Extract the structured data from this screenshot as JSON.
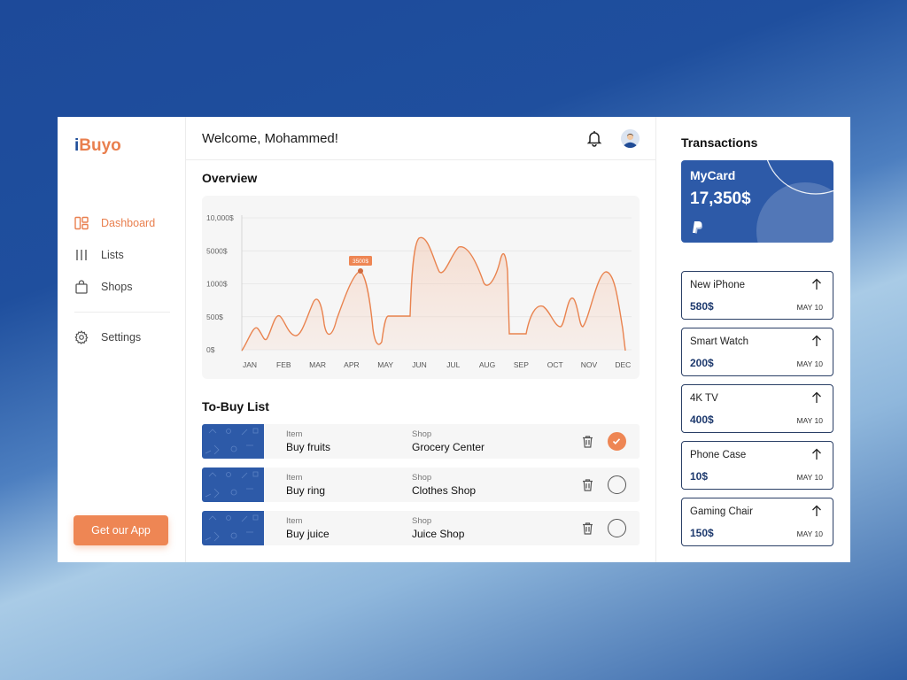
{
  "brand": {
    "logo_i": "i",
    "logo_rest": "Buyo"
  },
  "sidebar": {
    "items": [
      {
        "label": "Dashboard",
        "icon": "dashboard-icon",
        "active": true
      },
      {
        "label": "Lists",
        "icon": "lists-icon",
        "active": false
      },
      {
        "label": "Shops",
        "icon": "bag-icon",
        "active": false
      }
    ],
    "settings": {
      "label": "Settings",
      "icon": "gear-icon"
    },
    "cta": "Get our App"
  },
  "header": {
    "welcome": "Welcome, Mohammed!"
  },
  "overview": {
    "title": "Overview",
    "tooltip": "3500$"
  },
  "chart_data": {
    "type": "area",
    "categories": [
      "JAN",
      "FEB",
      "MAR",
      "APR",
      "MAY",
      "JUN",
      "JUL",
      "AUG",
      "SEP",
      "OCT",
      "NOV",
      "DEC"
    ],
    "y_tick_labels": [
      "0$",
      "500$",
      "1000$",
      "5000$",
      "10,000$"
    ],
    "highlight": {
      "x": "APR",
      "label": "3500$"
    },
    "color": "#e9834f",
    "grid": true
  },
  "tobuy": {
    "title": "To-Buy List",
    "item_label": "Item",
    "shop_label": "Shop",
    "rows": [
      {
        "item": "Buy fruits",
        "shop": "Grocery Center",
        "done": true
      },
      {
        "item": "Buy ring",
        "shop": "Clothes Shop",
        "done": false
      },
      {
        "item": "Buy juice",
        "shop": "Juice Shop",
        "done": false
      }
    ]
  },
  "transactions": {
    "title": "Transactions",
    "card": {
      "name": "MyCard",
      "amount": "17,350$"
    },
    "items": [
      {
        "name": "New iPhone",
        "amount": "580$",
        "date": "MAY 10"
      },
      {
        "name": "Smart Watch",
        "amount": "200$",
        "date": "MAY 10"
      },
      {
        "name": "4K TV",
        "amount": "400$",
        "date": "MAY 10"
      },
      {
        "name": "Phone Case",
        "amount": "10$",
        "date": "MAY 10"
      },
      {
        "name": "Gaming Chair",
        "amount": "150$",
        "date": "MAY 10"
      }
    ]
  },
  "colors": {
    "accent": "#ee8654",
    "brand_blue": "#2d5aa8",
    "navy": "#1e3a6e"
  }
}
